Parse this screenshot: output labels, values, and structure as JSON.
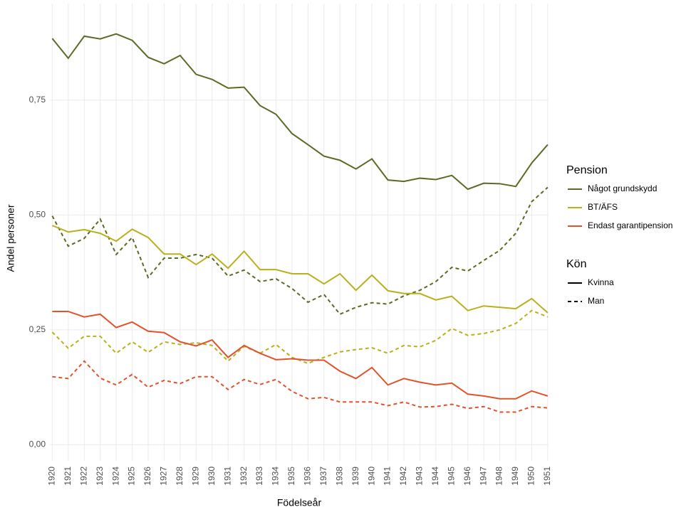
{
  "chart_data": {
    "type": "line",
    "x_label": "Födelseår",
    "y_label": "Andel personer",
    "x": [
      1920,
      1921,
      1922,
      1923,
      1924,
      1925,
      1926,
      1927,
      1928,
      1929,
      1930,
      1931,
      1932,
      1933,
      1934,
      1935,
      1936,
      1937,
      1938,
      1939,
      1940,
      1941,
      1942,
      1943,
      1944,
      1945,
      1946,
      1947,
      1948,
      1949,
      1950,
      1951
    ],
    "xlim": [
      1919.85,
      1951.05
    ],
    "xticks": [
      1920,
      1921,
      1922,
      1923,
      1924,
      1925,
      1926,
      1927,
      1928,
      1929,
      1930,
      1931,
      1932,
      1933,
      1934,
      1935,
      1936,
      1937,
      1938,
      1939,
      1940,
      1941,
      1942,
      1943,
      1944,
      1945,
      1946,
      1947,
      1948,
      1949,
      1950,
      1951
    ],
    "ylim": [
      -0.035,
      0.96
    ],
    "yticks": [
      {
        "value": 0,
        "label": "0,00"
      },
      {
        "value": 0.25,
        "label": "0,25"
      },
      {
        "value": 0.5,
        "label": "0,50"
      },
      {
        "value": 0.75,
        "label": "0,75"
      }
    ],
    "grid": true,
    "legend_position": "right",
    "legends": [
      {
        "title": "Pension",
        "entries": [
          {
            "name": "Något grundskydd",
            "color": "#5a6b24"
          },
          {
            "name": "BT/ÄFS",
            "color": "#b8b01c"
          },
          {
            "name": "Endast garantipension",
            "color": "#e0532b"
          }
        ]
      },
      {
        "title": "Kön",
        "entries": [
          {
            "name": "Kvinna",
            "dash": "solid"
          },
          {
            "name": "Man",
            "dash": "dashed"
          }
        ]
      }
    ],
    "series": [
      {
        "pension": 0,
        "kon": 0,
        "values": [
          0.884,
          0.841,
          0.889,
          0.883,
          0.894,
          0.88,
          0.843,
          0.829,
          0.847,
          0.806,
          0.795,
          0.776,
          0.778,
          0.738,
          0.719,
          0.677,
          0.653,
          0.628,
          0.619,
          0.6,
          0.622,
          0.576,
          0.573,
          0.58,
          0.577,
          0.586,
          0.556,
          0.569,
          0.568,
          0.562,
          0.613,
          0.653
        ]
      },
      {
        "pension": 0,
        "kon": 1,
        "values": [
          0.498,
          0.432,
          0.449,
          0.491,
          0.414,
          0.451,
          0.364,
          0.406,
          0.406,
          0.414,
          0.406,
          0.367,
          0.38,
          0.355,
          0.361,
          0.34,
          0.31,
          0.327,
          0.284,
          0.299,
          0.309,
          0.306,
          0.324,
          0.336,
          0.355,
          0.386,
          0.378,
          0.401,
          0.423,
          0.46,
          0.529,
          0.56
        ]
      },
      {
        "pension": 1,
        "kon": 0,
        "values": [
          0.477,
          0.463,
          0.468,
          0.46,
          0.443,
          0.469,
          0.451,
          0.415,
          0.415,
          0.392,
          0.415,
          0.384,
          0.421,
          0.381,
          0.381,
          0.372,
          0.372,
          0.35,
          0.372,
          0.336,
          0.369,
          0.335,
          0.329,
          0.329,
          0.315,
          0.323,
          0.292,
          0.302,
          0.299,
          0.296,
          0.318,
          0.287
        ]
      },
      {
        "pension": 1,
        "kon": 1,
        "values": [
          0.245,
          0.21,
          0.236,
          0.236,
          0.199,
          0.224,
          0.201,
          0.224,
          0.218,
          0.222,
          0.216,
          0.182,
          0.214,
          0.199,
          0.218,
          0.19,
          0.177,
          0.19,
          0.202,
          0.207,
          0.211,
          0.199,
          0.216,
          0.213,
          0.227,
          0.253,
          0.238,
          0.242,
          0.25,
          0.264,
          0.292,
          0.278
        ]
      },
      {
        "pension": 2,
        "kon": 0,
        "values": [
          0.29,
          0.29,
          0.278,
          0.284,
          0.255,
          0.267,
          0.247,
          0.244,
          0.224,
          0.215,
          0.228,
          0.19,
          0.216,
          0.199,
          0.185,
          0.187,
          0.184,
          0.184,
          0.16,
          0.144,
          0.168,
          0.13,
          0.144,
          0.136,
          0.13,
          0.134,
          0.11,
          0.106,
          0.1,
          0.1,
          0.117,
          0.106
        ]
      },
      {
        "pension": 2,
        "kon": 1,
        "values": [
          0.148,
          0.144,
          0.182,
          0.145,
          0.13,
          0.153,
          0.125,
          0.14,
          0.133,
          0.148,
          0.148,
          0.12,
          0.142,
          0.131,
          0.142,
          0.116,
          0.1,
          0.103,
          0.093,
          0.093,
          0.093,
          0.085,
          0.093,
          0.082,
          0.083,
          0.088,
          0.079,
          0.083,
          0.071,
          0.071,
          0.083,
          0.08
        ]
      }
    ]
  }
}
